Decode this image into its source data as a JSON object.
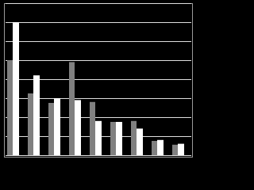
{
  "chart_data": {
    "type": "bar",
    "categories": [
      null,
      null,
      null,
      null,
      null,
      null,
      null,
      null,
      null
    ],
    "series": [
      {
        "color": "#808080",
        "values": [
          5.0,
          3.25,
          2.75,
          4.9,
          2.8,
          1.75,
          1.8,
          0.75,
          0.55
        ]
      },
      {
        "color": "#ffffff",
        "values": [
          7.0,
          4.2,
          3.0,
          2.9,
          1.8,
          1.75,
          1.4,
          0.8,
          0.6
        ]
      }
    ],
    "ylim": [
      0,
      8
    ],
    "yticks": [
      0,
      1,
      2,
      3,
      4,
      5,
      6,
      7,
      8
    ],
    "grid": true
  }
}
